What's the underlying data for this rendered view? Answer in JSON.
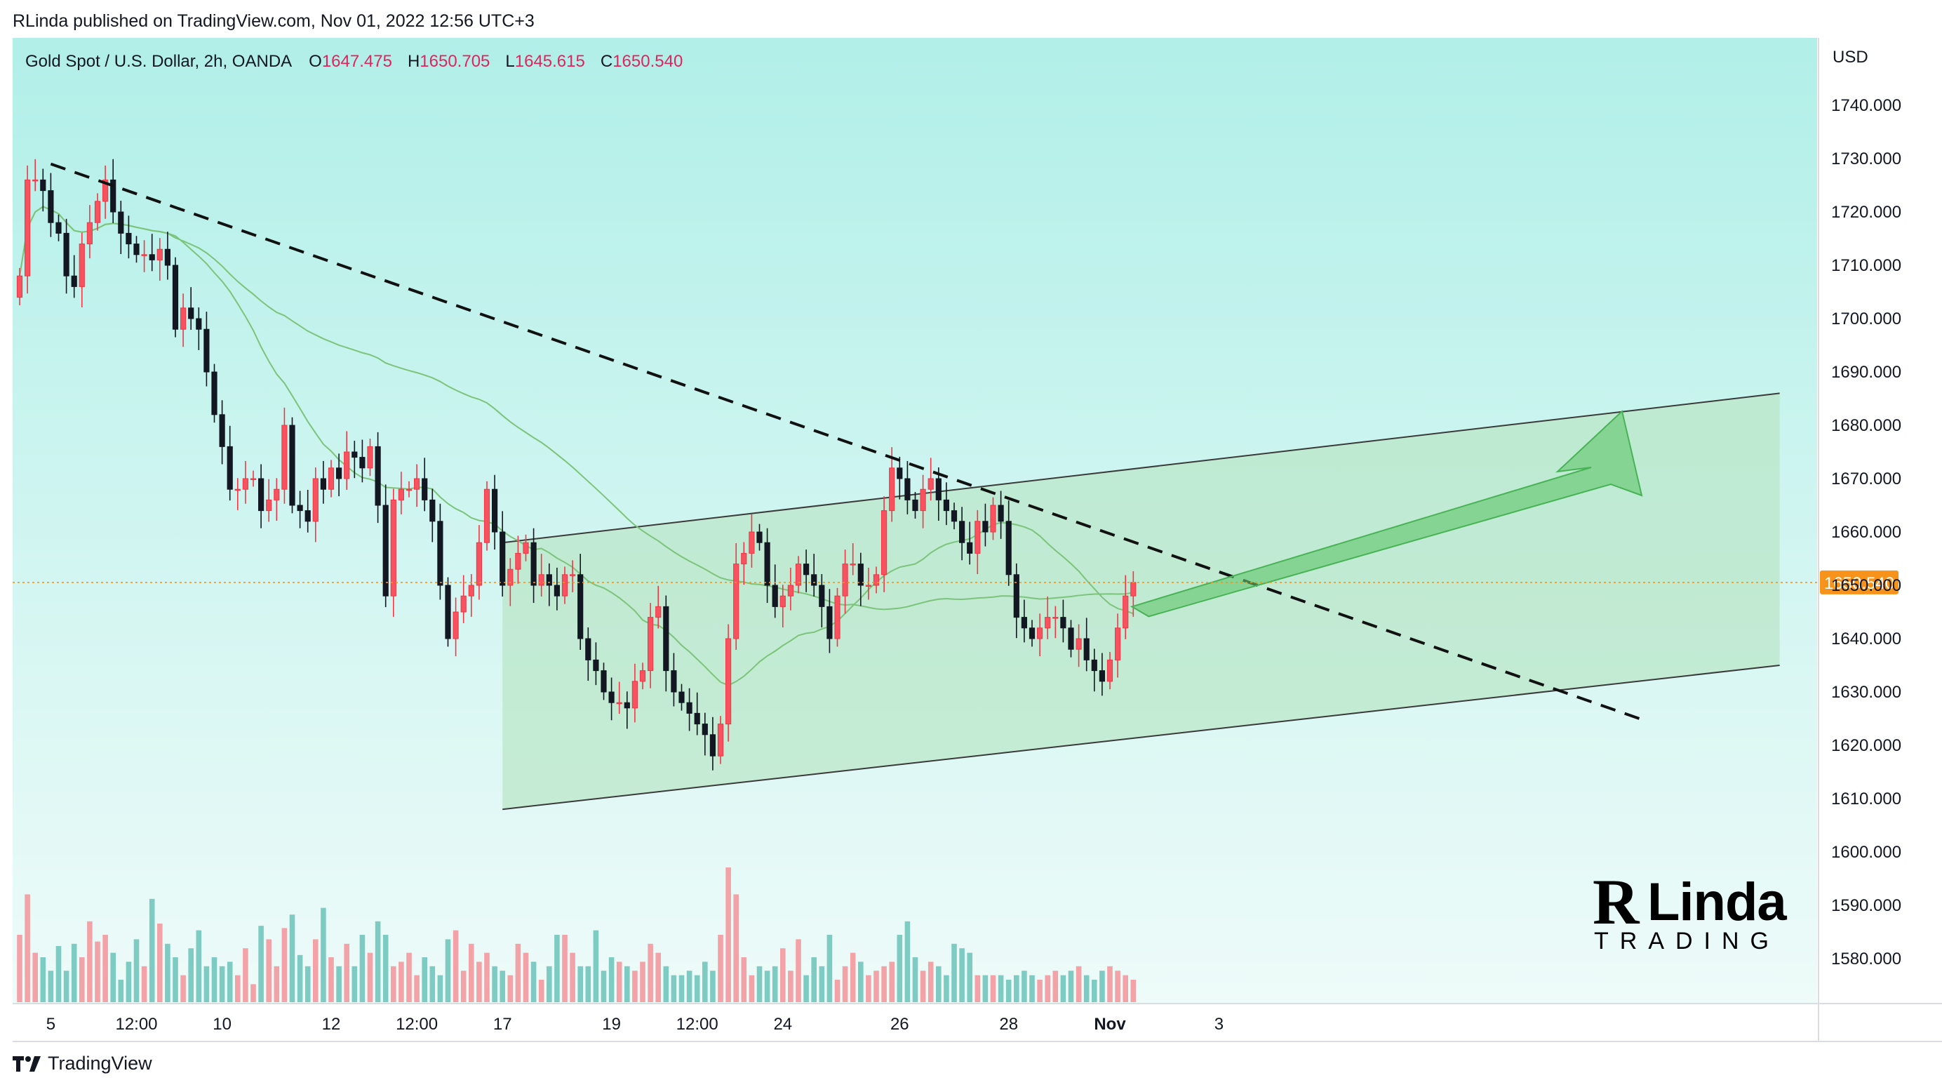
{
  "header": {
    "published": "RLinda published on TradingView.com, Nov 01, 2022 12:56 UTC+3"
  },
  "symbol_line": {
    "name": "Gold Spot / U.S. Dollar, 2h, OANDA",
    "o_label": "O",
    "o_value": "1647.475",
    "h_label": "H",
    "h_value": "1650.705",
    "l_label": "L",
    "l_value": "1645.615",
    "c_label": "C",
    "c_value": "1650.540"
  },
  "footer": {
    "brand": "TradingView"
  },
  "watermark": {
    "r": "R",
    "linda": "Linda",
    "trading": "TRADING"
  },
  "colors": {
    "up": "#f23645",
    "up_body": "#f7525f",
    "down": "#131722",
    "vol_up": "#f3a3a8",
    "vol_down": "#7ecbc4",
    "channel_fill": "#b9e5c6",
    "ma": "#7cc47a",
    "price_line": "#f7931a",
    "bg_top": "#b1efe8",
    "bg_bottom": "#eefbf9"
  },
  "chart_data": {
    "type": "candlestick",
    "currency": "USD",
    "ylim": [
      1570,
      1750
    ],
    "y_ticks": [
      "1740.000",
      "1730.000",
      "1720.000",
      "1710.000",
      "1700.000",
      "1690.000",
      "1680.000",
      "1670.000",
      "1660.000",
      "1650.000",
      "1640.000",
      "1630.000",
      "1620.000",
      "1610.000",
      "1600.000",
      "1590.000",
      "1580.000"
    ],
    "y_tick_values": [
      1740,
      1730,
      1720,
      1710,
      1700,
      1690,
      1680,
      1670,
      1660,
      1650,
      1640,
      1630,
      1620,
      1610,
      1600,
      1590,
      1580
    ],
    "x_ticks": [
      "5",
      "12:00",
      "10",
      "12",
      "12:00",
      "17",
      "19",
      "12:00",
      "24",
      "26",
      "28",
      "Nov",
      "3"
    ],
    "x_tick_bars": [
      4,
      15,
      26,
      40,
      51,
      62,
      76,
      87,
      98,
      113,
      127,
      140,
      154
    ],
    "last_price": "1650.540",
    "last_price_value": 1650.54,
    "close_path": [
      1708,
      1726,
      1726,
      1724,
      1718,
      1716,
      1708,
      1706,
      1714,
      1718,
      1722,
      1726,
      1720,
      1716,
      1714,
      1712,
      1712,
      1711,
      1713,
      1710,
      1698,
      1702,
      1700,
      1698,
      1690,
      1682,
      1676,
      1668,
      1668,
      1670,
      1670,
      1664,
      1666,
      1668,
      1680,
      1665,
      1664,
      1662,
      1670,
      1668,
      1672,
      1670,
      1675,
      1674,
      1672,
      1676,
      1665,
      1648,
      1666,
      1668,
      1668,
      1670,
      1666,
      1662,
      1650,
      1640,
      1645,
      1648,
      1650,
      1658,
      1668,
      1660,
      1650,
      1653,
      1656,
      1658,
      1650,
      1652,
      1650,
      1648,
      1652,
      1652,
      1640,
      1636,
      1634,
      1630,
      1628,
      1628,
      1627,
      1632,
      1634,
      1644,
      1646,
      1634,
      1630,
      1628,
      1626,
      1624,
      1622,
      1618,
      1624,
      1640,
      1654,
      1656,
      1660,
      1658,
      1650,
      1646,
      1648,
      1650,
      1654,
      1652,
      1650,
      1646,
      1640,
      1648,
      1654,
      1654,
      1650,
      1650,
      1652,
      1664,
      1672,
      1670,
      1666,
      1664,
      1668,
      1670,
      1666,
      1664,
      1662,
      1658,
      1656,
      1662,
      1660,
      1665,
      1662,
      1652,
      1644,
      1642,
      1640,
      1642,
      1644,
      1644,
      1642,
      1638,
      1640,
      1636,
      1634,
      1632,
      1636,
      1642,
      1648,
      1650.54
    ],
    "volume": [
      30,
      48,
      22,
      20,
      14,
      25,
      14,
      26,
      20,
      36,
      27,
      30,
      22,
      10,
      18,
      28,
      16,
      46,
      35,
      26,
      20,
      12,
      24,
      32,
      16,
      20,
      16,
      18,
      12,
      24,
      8,
      34,
      28,
      16,
      33,
      39,
      21,
      16,
      28,
      42,
      20,
      16,
      26,
      16,
      30,
      22,
      36,
      30,
      16,
      18,
      22,
      12,
      20,
      16,
      12,
      28,
      32,
      14,
      26,
      18,
      22,
      16,
      14,
      12,
      26,
      22,
      18,
      10,
      16,
      30,
      30,
      22,
      16,
      16,
      32,
      14,
      20,
      18,
      16,
      14,
      18,
      26,
      22,
      16,
      12,
      12,
      14,
      12,
      18,
      14,
      30,
      60,
      48,
      20,
      12,
      16,
      14,
      16,
      24,
      14,
      28,
      12,
      20,
      16,
      30,
      10,
      16,
      22,
      18,
      12,
      14,
      16,
      18,
      30,
      36,
      20,
      14,
      18,
      16,
      12,
      26,
      24,
      22,
      12,
      12,
      12,
      12,
      10,
      12,
      14,
      12,
      10,
      12,
      14,
      12,
      14,
      16,
      12,
      10,
      14,
      16,
      14,
      12,
      10,
      14,
      14,
      12,
      12,
      12,
      16,
      20,
      14
    ],
    "channel": {
      "upper": [
        {
          "bar": 62,
          "price": 1658
        },
        {
          "bar": 226,
          "price": 1686
        }
      ],
      "lower": [
        {
          "bar": 62,
          "price": 1608
        },
        {
          "bar": 226,
          "price": 1635
        }
      ]
    },
    "trend_line": [
      {
        "bar": 4,
        "price": 1729
      },
      {
        "bar": 208,
        "price": 1625
      }
    ],
    "moving_averages": [
      "fast",
      "slow"
    ]
  }
}
